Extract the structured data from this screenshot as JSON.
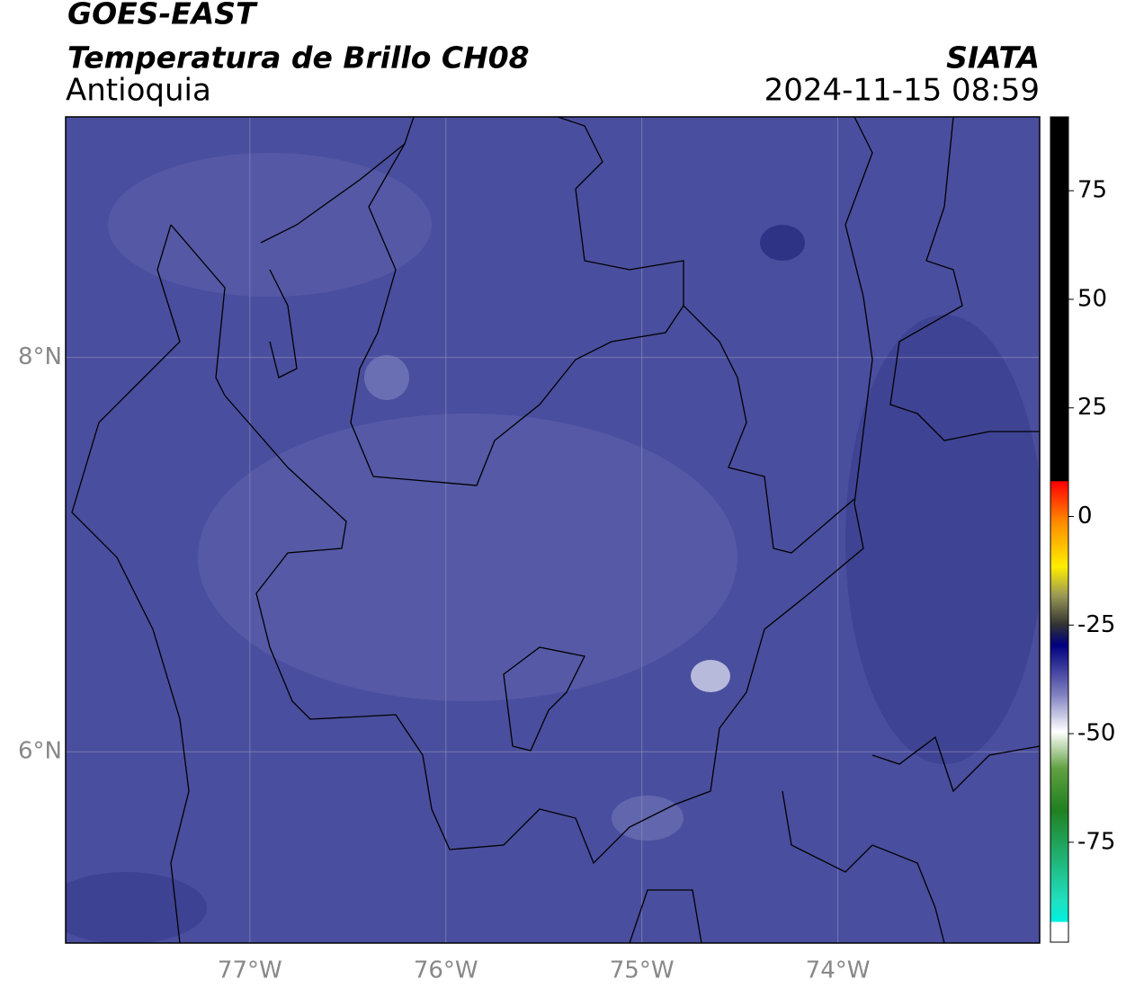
{
  "chart_data": {
    "type": "map",
    "title": "GOES-EAST",
    "subtitle": "Temperatura de Brillo CH08",
    "source": "SIATA",
    "region": "Antioquia",
    "timestamp": "2024-11-15 08:59",
    "xlim": [
      -77.94,
      -72.97
    ],
    "ylim": [
      5.03,
      9.22
    ],
    "xticks": [
      {
        "value": -77,
        "label": "77°W"
      },
      {
        "value": -76,
        "label": "76°W"
      },
      {
        "value": -75,
        "label": "75°W"
      },
      {
        "value": -74,
        "label": "74°W"
      }
    ],
    "yticks": [
      {
        "value": 6,
        "label": "6°N"
      },
      {
        "value": 8,
        "label": "8°N"
      }
    ],
    "grid": true,
    "colorbar": {
      "lim": [
        -98,
        92
      ],
      "ticks": [
        75,
        50,
        25,
        0,
        -25,
        -50,
        -75
      ]
    }
  }
}
